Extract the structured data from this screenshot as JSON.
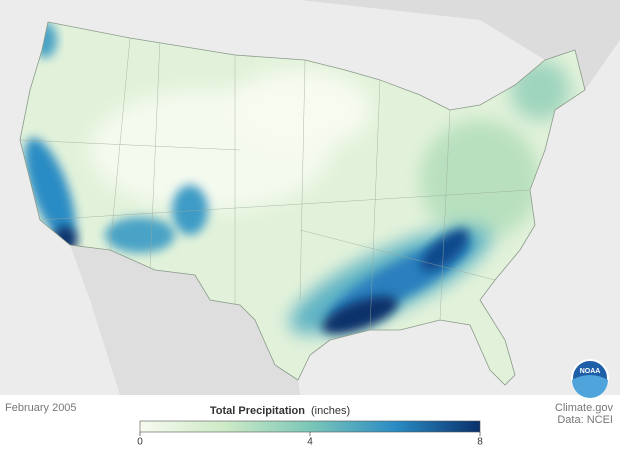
{
  "map": {
    "date": "February 2005",
    "logo": "NOAA",
    "credit": "Climate.gov",
    "source": "Data: NCEI"
  },
  "legend": {
    "title": "Total Precipitation",
    "units": "(inches)",
    "range": [
      0,
      8
    ],
    "ticks": [
      0,
      4,
      8
    ],
    "colors": [
      "#f7fbf0",
      "#cdeac6",
      "#7cc7b8",
      "#2b8cc4",
      "#08306b"
    ]
  }
}
